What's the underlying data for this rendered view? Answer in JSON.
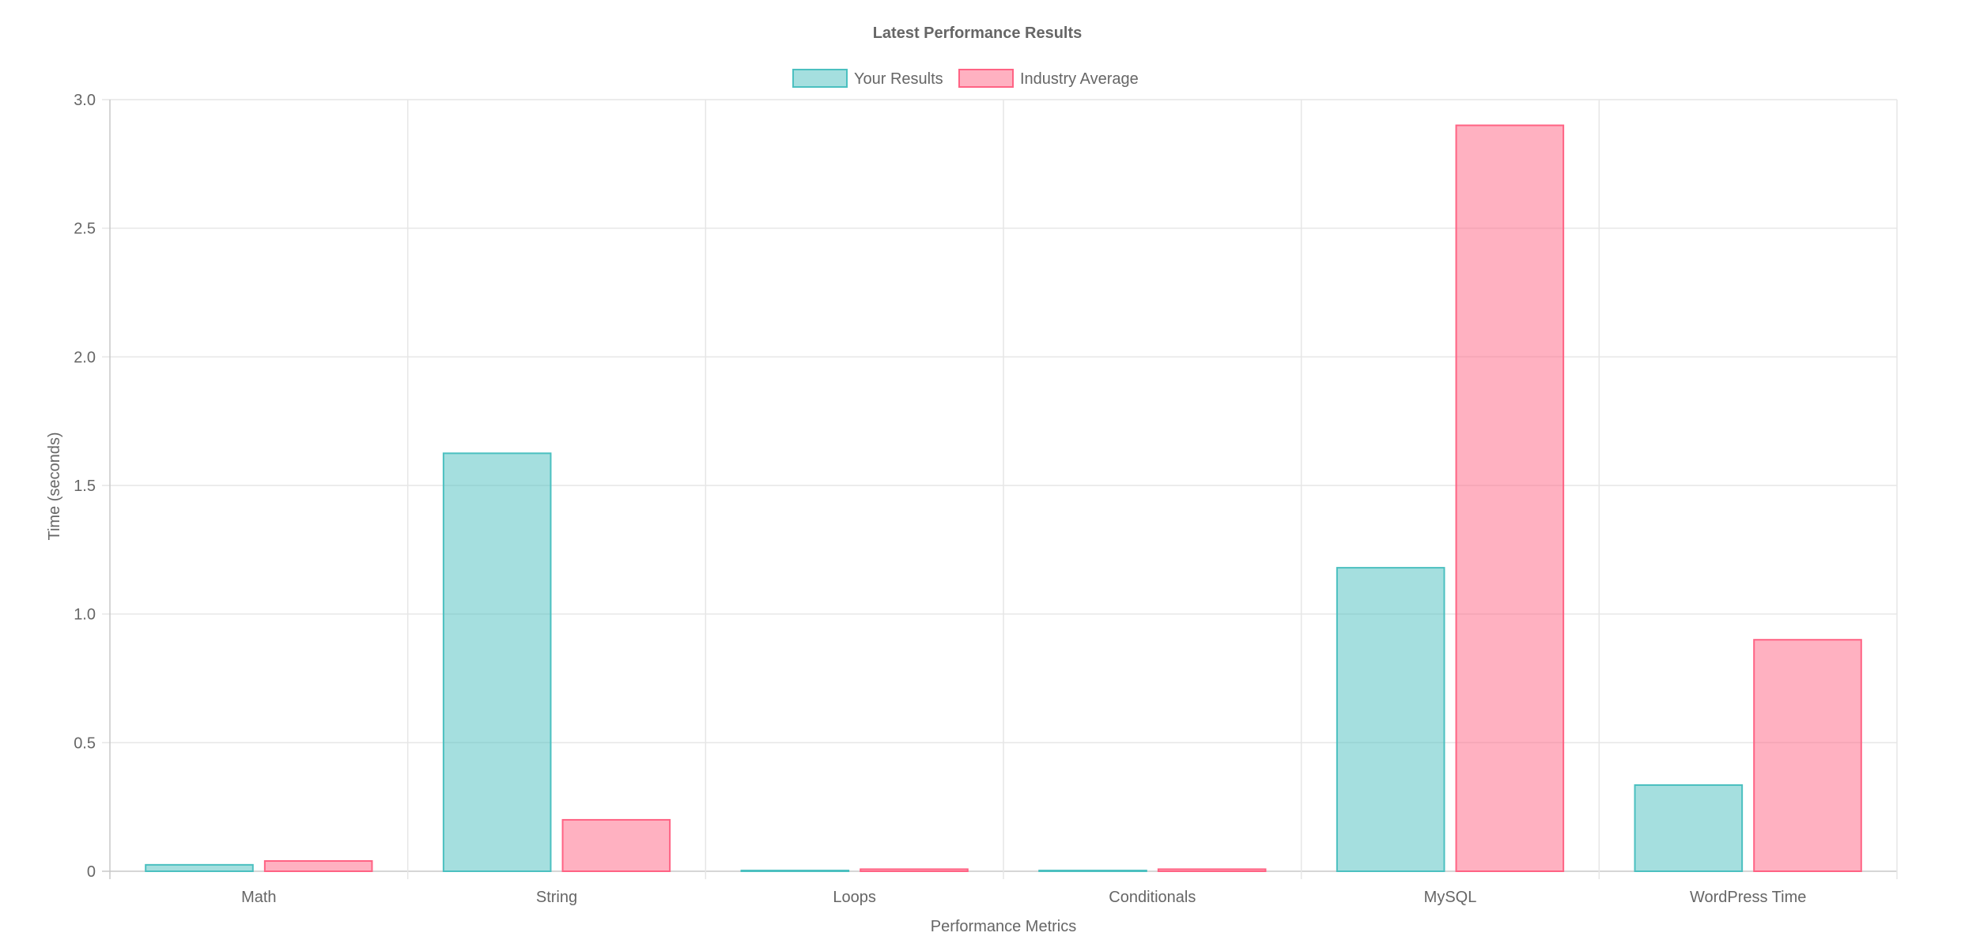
{
  "chart_data": {
    "type": "bar",
    "title": "Latest Performance Results",
    "xlabel": "Performance Metrics",
    "ylabel": "Time (seconds)",
    "categories": [
      "Math",
      "String",
      "Loops",
      "Conditionals",
      "MySQL",
      "WordPress Time"
    ],
    "series": [
      {
        "name": "Your Results",
        "values": [
          0.025,
          1.625,
          0.003,
          0.003,
          1.18,
          0.335
        ],
        "color": "#4BC0C0"
      },
      {
        "name": "Industry Average",
        "values": [
          0.04,
          0.2,
          0.008,
          0.008,
          2.9,
          0.9
        ],
        "color": "#FF6384"
      }
    ],
    "ylim": [
      0,
      3.0
    ],
    "yticks": [
      "0",
      "0.5",
      "1.0",
      "1.5",
      "2.0",
      "2.5",
      "3.0"
    ],
    "grid": true,
    "legend_position": "top"
  }
}
